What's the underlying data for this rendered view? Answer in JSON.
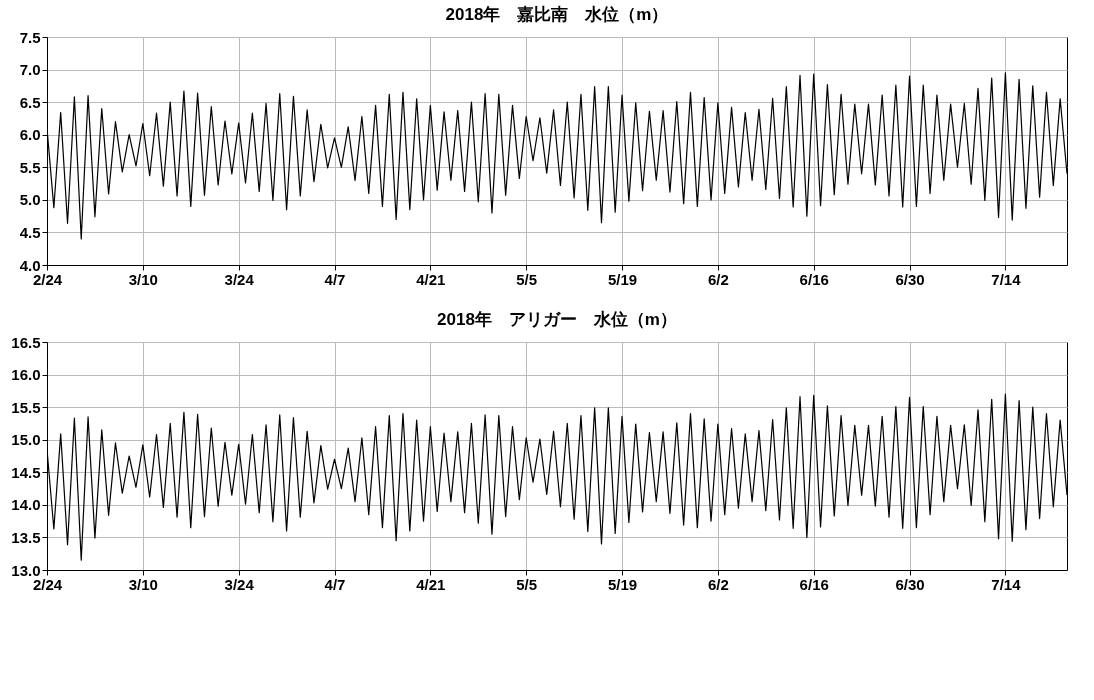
{
  "chart_data": [
    {
      "type": "line",
      "title": "2018年　嘉比南　水位（m）",
      "color": "#000000",
      "grid": true,
      "xlim": [
        "2018-02-24",
        "2018-07-23"
      ],
      "ylim": [
        4.0,
        7.5
      ],
      "yticks": [
        {
          "value": 4,
          "label": "4.0"
        },
        {
          "value": 4.5,
          "label": "4.5"
        },
        {
          "value": 5,
          "label": "5.0"
        },
        {
          "value": 5.5,
          "label": "5.5"
        },
        {
          "value": 6,
          "label": "6.0"
        },
        {
          "value": 6.5,
          "label": "6.5"
        },
        {
          "value": 7,
          "label": "7.0"
        },
        {
          "value": 7.5,
          "label": "7.5"
        }
      ],
      "xticks": [
        {
          "value": "2018-02-24",
          "label": "2/24"
        },
        {
          "value": "2018-03-10",
          "label": "3/10"
        },
        {
          "value": "2018-03-24",
          "label": "3/24"
        },
        {
          "value": "2018-04-07",
          "label": "4/7"
        },
        {
          "value": "2018-04-21",
          "label": "4/21"
        },
        {
          "value": "2018-05-05",
          "label": "5/5"
        },
        {
          "value": "2018-05-19",
          "label": "5/19"
        },
        {
          "value": "2018-06-02",
          "label": "6/2"
        },
        {
          "value": "2018-06-16",
          "label": "6/16"
        },
        {
          "value": "2018-06-30",
          "label": "6/30"
        },
        {
          "value": "2018-07-14",
          "label": "7/14"
        }
      ],
      "x": [
        "2018-02-24",
        "2018-02-25",
        "2018-02-26",
        "2018-02-27",
        "2018-02-28",
        "2018-03-01",
        "2018-03-02",
        "2018-03-03",
        "2018-03-04",
        "2018-03-05",
        "2018-03-06",
        "2018-03-07",
        "2018-03-08",
        "2018-03-09",
        "2018-03-10",
        "2018-03-11",
        "2018-03-12",
        "2018-03-13",
        "2018-03-14",
        "2018-03-15",
        "2018-03-16",
        "2018-03-17",
        "2018-03-18",
        "2018-03-19",
        "2018-03-20",
        "2018-03-21",
        "2018-03-22",
        "2018-03-23",
        "2018-03-24",
        "2018-03-25",
        "2018-03-26",
        "2018-03-27",
        "2018-03-28",
        "2018-03-29",
        "2018-03-30",
        "2018-03-31",
        "2018-04-01",
        "2018-04-02",
        "2018-04-03",
        "2018-04-04",
        "2018-04-05",
        "2018-04-06",
        "2018-04-07",
        "2018-04-08",
        "2018-04-09",
        "2018-04-10",
        "2018-04-11",
        "2018-04-12",
        "2018-04-13",
        "2018-04-14",
        "2018-04-15",
        "2018-04-16",
        "2018-04-17",
        "2018-04-18",
        "2018-04-19",
        "2018-04-20",
        "2018-04-21",
        "2018-04-22",
        "2018-04-23",
        "2018-04-24",
        "2018-04-25",
        "2018-04-26",
        "2018-04-27",
        "2018-04-28",
        "2018-04-29",
        "2018-04-30",
        "2018-05-01",
        "2018-05-02",
        "2018-05-03",
        "2018-05-04",
        "2018-05-05",
        "2018-05-06",
        "2018-05-07",
        "2018-05-08",
        "2018-05-09",
        "2018-05-10",
        "2018-05-11",
        "2018-05-12",
        "2018-05-13",
        "2018-05-14",
        "2018-05-15",
        "2018-05-16",
        "2018-05-17",
        "2018-05-18",
        "2018-05-19",
        "2018-05-20",
        "2018-05-21",
        "2018-05-22",
        "2018-05-23",
        "2018-05-24",
        "2018-05-25",
        "2018-05-26",
        "2018-05-27",
        "2018-05-28",
        "2018-05-29",
        "2018-05-30",
        "2018-05-31",
        "2018-06-01",
        "2018-06-02",
        "2018-06-03",
        "2018-06-04",
        "2018-06-05",
        "2018-06-06",
        "2018-06-07",
        "2018-06-08",
        "2018-06-09",
        "2018-06-10",
        "2018-06-11",
        "2018-06-12",
        "2018-06-13",
        "2018-06-14",
        "2018-06-15",
        "2018-06-16",
        "2018-06-17",
        "2018-06-18",
        "2018-06-19",
        "2018-06-20",
        "2018-06-21",
        "2018-06-22",
        "2018-06-23",
        "2018-06-24",
        "2018-06-25",
        "2018-06-26",
        "2018-06-27",
        "2018-06-28",
        "2018-06-29",
        "2018-06-30",
        "2018-07-01",
        "2018-07-02",
        "2018-07-03",
        "2018-07-04",
        "2018-07-05",
        "2018-07-06",
        "2018-07-07",
        "2018-07-08",
        "2018-07-09",
        "2018-07-10",
        "2018-07-11",
        "2018-07-12",
        "2018-07-13",
        "2018-07-14",
        "2018-07-15",
        "2018-07-16",
        "2018-07-17",
        "2018-07-18",
        "2018-07-19",
        "2018-07-20",
        "2018-07-21",
        "2018-07-22",
        "2018-07-23"
      ],
      "values": [
        6.1,
        4.88,
        6.34,
        4.64,
        6.58,
        4.4,
        6.6,
        4.74,
        6.4,
        5.09,
        6.2,
        5.43,
        6.0,
        5.52,
        6.17,
        5.37,
        6.33,
        5.21,
        6.5,
        5.06,
        6.67,
        4.9,
        6.64,
        5.07,
        6.43,
        5.23,
        6.21,
        5.4,
        6.18,
        5.26,
        6.33,
        5.13,
        6.48,
        4.99,
        6.63,
        4.85,
        6.59,
        5.06,
        6.38,
        5.28,
        6.16,
        5.49,
        5.95,
        5.5,
        6.12,
        5.3,
        6.28,
        5.1,
        6.45,
        4.9,
        6.62,
        4.7,
        6.65,
        4.85,
        6.55,
        5.0,
        6.45,
        5.15,
        6.35,
        5.3,
        6.37,
        5.13,
        6.5,
        4.97,
        6.63,
        4.8,
        6.62,
        5.07,
        6.45,
        5.33,
        6.28,
        5.6,
        6.26,
        5.41,
        6.38,
        5.22,
        6.5,
        5.03,
        6.62,
        4.84,
        6.74,
        4.65,
        6.74,
        4.81,
        6.61,
        4.98,
        6.49,
        5.14,
        6.36,
        5.3,
        6.37,
        5.12,
        6.51,
        4.94,
        6.65,
        4.9,
        6.57,
        5.0,
        6.49,
        5.1,
        6.42,
        5.2,
        6.34,
        5.3,
        6.39,
        5.16,
        6.56,
        5.02,
        6.74,
        4.89,
        6.91,
        4.75,
        6.93,
        4.91,
        6.77,
        5.08,
        6.62,
        5.24,
        6.47,
        5.4,
        6.47,
        5.23,
        6.61,
        5.06,
        6.76,
        4.89,
        6.9,
        4.9,
        6.76,
        5.1,
        6.61,
        5.3,
        6.47,
        5.5,
        6.48,
        5.24,
        6.71,
        4.99,
        6.87,
        4.73,
        6.95,
        4.69,
        6.85,
        4.87,
        6.75,
        5.04,
        6.65,
        5.22,
        6.55,
        5.4
      ]
    },
    {
      "type": "line",
      "title": "2018年　アリガー　水位（m）",
      "color": "#000000",
      "grid": true,
      "xlim": [
        "2018-02-24",
        "2018-07-23"
      ],
      "ylim": [
        13.0,
        16.5
      ],
      "yticks": [
        {
          "value": 13,
          "label": "13.0"
        },
        {
          "value": 13.5,
          "label": "13.5"
        },
        {
          "value": 14,
          "label": "14.0"
        },
        {
          "value": 14.5,
          "label": "14.5"
        },
        {
          "value": 15,
          "label": "15.0"
        },
        {
          "value": 15.5,
          "label": "15.5"
        },
        {
          "value": 16,
          "label": "16.0"
        },
        {
          "value": 16.5,
          "label": "16.5"
        }
      ],
      "xticks": [
        {
          "value": "2018-02-24",
          "label": "2/24"
        },
        {
          "value": "2018-03-10",
          "label": "3/10"
        },
        {
          "value": "2018-03-24",
          "label": "3/24"
        },
        {
          "value": "2018-04-07",
          "label": "4/7"
        },
        {
          "value": "2018-04-21",
          "label": "4/21"
        },
        {
          "value": "2018-05-05",
          "label": "5/5"
        },
        {
          "value": "2018-05-19",
          "label": "5/19"
        },
        {
          "value": "2018-06-02",
          "label": "6/2"
        },
        {
          "value": "2018-06-16",
          "label": "6/16"
        },
        {
          "value": "2018-06-30",
          "label": "6/30"
        },
        {
          "value": "2018-07-14",
          "label": "7/14"
        }
      ],
      "x": [
        "2018-02-24",
        "2018-02-25",
        "2018-02-26",
        "2018-02-27",
        "2018-02-28",
        "2018-03-01",
        "2018-03-02",
        "2018-03-03",
        "2018-03-04",
        "2018-03-05",
        "2018-03-06",
        "2018-03-07",
        "2018-03-08",
        "2018-03-09",
        "2018-03-10",
        "2018-03-11",
        "2018-03-12",
        "2018-03-13",
        "2018-03-14",
        "2018-03-15",
        "2018-03-16",
        "2018-03-17",
        "2018-03-18",
        "2018-03-19",
        "2018-03-20",
        "2018-03-21",
        "2018-03-22",
        "2018-03-23",
        "2018-03-24",
        "2018-03-25",
        "2018-03-26",
        "2018-03-27",
        "2018-03-28",
        "2018-03-29",
        "2018-03-30",
        "2018-03-31",
        "2018-04-01",
        "2018-04-02",
        "2018-04-03",
        "2018-04-04",
        "2018-04-05",
        "2018-04-06",
        "2018-04-07",
        "2018-04-08",
        "2018-04-09",
        "2018-04-10",
        "2018-04-11",
        "2018-04-12",
        "2018-04-13",
        "2018-04-14",
        "2018-04-15",
        "2018-04-16",
        "2018-04-17",
        "2018-04-18",
        "2018-04-19",
        "2018-04-20",
        "2018-04-21",
        "2018-04-22",
        "2018-04-23",
        "2018-04-24",
        "2018-04-25",
        "2018-04-26",
        "2018-04-27",
        "2018-04-28",
        "2018-04-29",
        "2018-04-30",
        "2018-05-01",
        "2018-05-02",
        "2018-05-03",
        "2018-05-04",
        "2018-05-05",
        "2018-05-06",
        "2018-05-07",
        "2018-05-08",
        "2018-05-09",
        "2018-05-10",
        "2018-05-11",
        "2018-05-12",
        "2018-05-13",
        "2018-05-14",
        "2018-05-15",
        "2018-05-16",
        "2018-05-17",
        "2018-05-18",
        "2018-05-19",
        "2018-05-20",
        "2018-05-21",
        "2018-05-22",
        "2018-05-23",
        "2018-05-24",
        "2018-05-25",
        "2018-05-26",
        "2018-05-27",
        "2018-05-28",
        "2018-05-29",
        "2018-05-30",
        "2018-05-31",
        "2018-06-01",
        "2018-06-02",
        "2018-06-03",
        "2018-06-04",
        "2018-06-05",
        "2018-06-06",
        "2018-06-07",
        "2018-06-08",
        "2018-06-09",
        "2018-06-10",
        "2018-06-11",
        "2018-06-12",
        "2018-06-13",
        "2018-06-14",
        "2018-06-15",
        "2018-06-16",
        "2018-06-17",
        "2018-06-18",
        "2018-06-19",
        "2018-06-20",
        "2018-06-21",
        "2018-06-22",
        "2018-06-23",
        "2018-06-24",
        "2018-06-25",
        "2018-06-26",
        "2018-06-27",
        "2018-06-28",
        "2018-06-29",
        "2018-06-30",
        "2018-07-01",
        "2018-07-02",
        "2018-07-03",
        "2018-07-04",
        "2018-07-05",
        "2018-07-06",
        "2018-07-07",
        "2018-07-08",
        "2018-07-09",
        "2018-07-10",
        "2018-07-11",
        "2018-07-12",
        "2018-07-13",
        "2018-07-14",
        "2018-07-15",
        "2018-07-16",
        "2018-07-17",
        "2018-07-18",
        "2018-07-19",
        "2018-07-20",
        "2018-07-21",
        "2018-07-22",
        "2018-07-23"
      ],
      "values": [
        14.85,
        13.63,
        15.09,
        13.39,
        15.33,
        13.15,
        15.35,
        13.49,
        15.15,
        13.84,
        14.95,
        14.18,
        14.75,
        14.27,
        14.92,
        14.12,
        15.08,
        13.96,
        15.25,
        13.81,
        15.42,
        13.65,
        15.39,
        13.82,
        15.18,
        13.98,
        14.96,
        14.15,
        14.93,
        14.01,
        15.08,
        13.88,
        15.23,
        13.74,
        15.38,
        13.6,
        15.34,
        13.81,
        15.13,
        14.03,
        14.91,
        14.24,
        14.7,
        14.25,
        14.87,
        14.05,
        15.03,
        13.85,
        15.2,
        13.65,
        15.37,
        13.45,
        15.4,
        13.6,
        15.3,
        13.75,
        15.2,
        13.9,
        15.1,
        14.05,
        15.12,
        13.88,
        15.25,
        13.72,
        15.38,
        13.55,
        15.37,
        13.82,
        15.2,
        14.08,
        15.03,
        14.35,
        15.01,
        14.16,
        15.13,
        13.97,
        15.25,
        13.78,
        15.37,
        13.59,
        15.49,
        13.4,
        15.49,
        13.56,
        15.36,
        13.73,
        15.24,
        13.89,
        15.11,
        14.05,
        15.12,
        13.87,
        15.26,
        13.69,
        15.4,
        13.65,
        15.32,
        13.75,
        15.24,
        13.85,
        15.17,
        13.95,
        15.09,
        14.05,
        15.14,
        13.91,
        15.31,
        13.77,
        15.49,
        13.64,
        15.66,
        13.5,
        15.68,
        13.66,
        15.52,
        13.83,
        15.37,
        13.99,
        15.22,
        14.15,
        15.22,
        13.98,
        15.36,
        13.81,
        15.51,
        13.64,
        15.65,
        13.65,
        15.51,
        13.85,
        15.36,
        14.05,
        15.22,
        14.25,
        15.23,
        13.99,
        15.46,
        13.74,
        15.62,
        13.48,
        15.7,
        13.44,
        15.6,
        13.62,
        15.5,
        13.79,
        15.4,
        13.97,
        15.3,
        14.15
      ]
    }
  ]
}
